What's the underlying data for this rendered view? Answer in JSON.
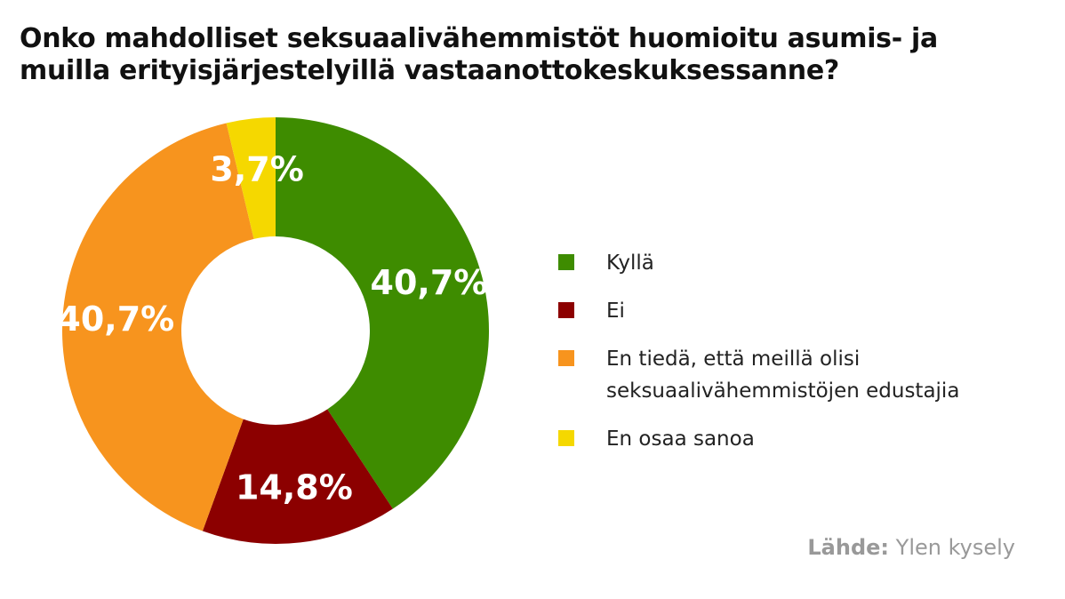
{
  "chart_data": {
    "type": "pie",
    "title": "Onko mahdolliset seksuaalivähemmistöt huomioitu asumis- ja muilla erityisjärjestelyillä vastaanottokeskuksessanne?",
    "categories": [
      "Kyllä",
      "Ei",
      "En tiedä, että meillä olisi seksuaalivähemmistöjen edustajia",
      "En osaa sanoa"
    ],
    "values": [
      40.7,
      14.8,
      40.7,
      3.7
    ],
    "value_labels": [
      "40,7%",
      "14,8%",
      "40,7%",
      "3,7%"
    ],
    "colors": [
      "#3e8c00",
      "#8c0000",
      "#f7941e",
      "#f5d800"
    ],
    "source_label": "Lähde:",
    "source": "Ylen kysely"
  }
}
